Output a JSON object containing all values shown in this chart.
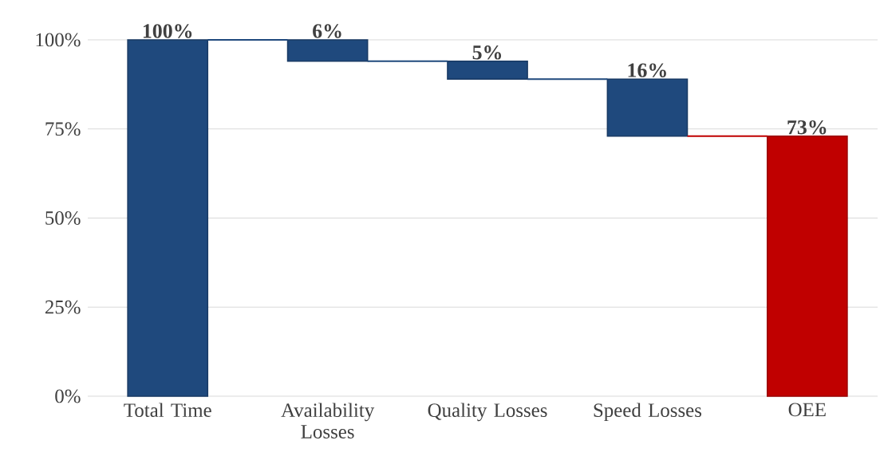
{
  "chart_data": {
    "type": "bar",
    "categories": [
      "Total Time",
      "Availability Losses",
      "Quality Losses",
      "Speed Losses",
      "OEE"
    ],
    "values": [
      100,
      -6,
      -5,
      -16,
      73
    ],
    "base": [
      0,
      100,
      94,
      89,
      0
    ],
    "colors": [
      "#1f497d",
      "#1f497d",
      "#1f497d",
      "#1f497d",
      "#c00000"
    ],
    "value_labels": [
      "100%",
      "6%",
      "5%",
      "16%",
      "73%"
    ],
    "ylim": [
      0,
      100
    ],
    "yticks": [
      {
        "value": 0,
        "label": "0%"
      },
      {
        "value": 25,
        "label": "25%"
      },
      {
        "value": 50,
        "label": "50%"
      },
      {
        "value": 75,
        "label": "75%"
      },
      {
        "value": 100,
        "label": "100%"
      }
    ],
    "grid": "y"
  }
}
